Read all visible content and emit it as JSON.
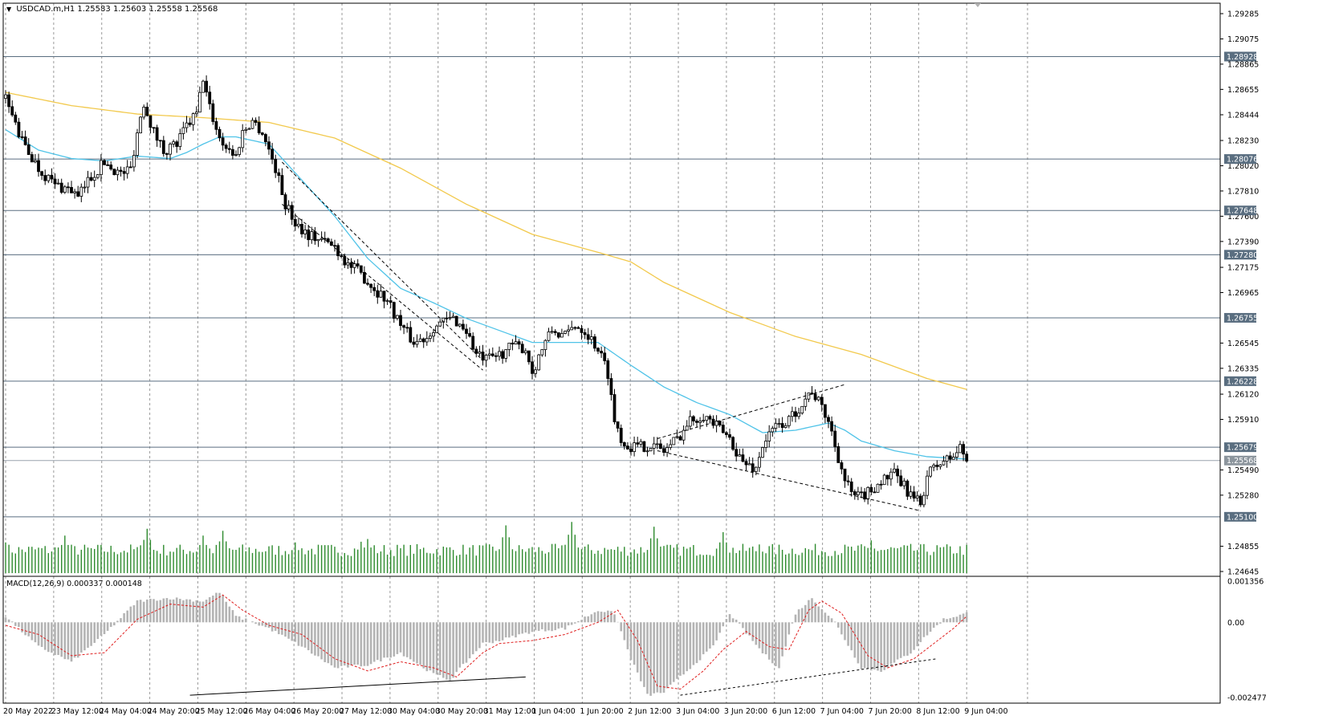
{
  "header": {
    "symbol": "USDCAD.m,H1",
    "ohlc": "1.25583 1.25603 1.25558 1.25568"
  },
  "macd": {
    "label": "MACD(12,26,9) 0.000337 0.000148",
    "axis_labels": [
      "0.001356",
      "0.00",
      "-0.002477"
    ]
  },
  "colors": {
    "ma_fast": "#4fc3e8",
    "ma_slow": "#f2c94c",
    "volume": "#2e8b2e",
    "hline": "#5a6e80",
    "macd_hist": "#b4b4b4",
    "macd_signal": "#e02020",
    "candle": "#000000"
  },
  "chart_data": {
    "type": "candlestick",
    "y_ticks": [
      "1.29285",
      "1.29075",
      "1.28865",
      "1.28655",
      "1.28444",
      "1.28230",
      "1.28020",
      "1.27810",
      "1.27600",
      "1.27390",
      "1.27175",
      "1.26965",
      "1.26545",
      "1.26335",
      "1.26120",
      "1.25910",
      "1.25490",
      "1.25280",
      "1.24855",
      "1.24645"
    ],
    "ylim": [
      1.24645,
      1.29285
    ],
    "hlines": [
      "1.28928",
      "1.28076",
      "1.27648",
      "1.27280",
      "1.26755",
      "1.26228",
      "1.25679",
      "1.25568",
      "1.25100"
    ],
    "current_price": "1.25568",
    "x_labels": [
      "20 May 2022",
      "23 May 12:00",
      "24 May 04:00",
      "24 May 20:00",
      "25 May 12:00",
      "26 May 04:00",
      "26 May 20:00",
      "27 May 12:00",
      "30 May 04:00",
      "30 May 20:00",
      "31 May 12:00",
      "1 Jun 04:00",
      "1 Jun 20:00",
      "2 Jun 12:00",
      "3 Jun 04:00",
      "3 Jun 20:00",
      "6 Jun 12:00",
      "7 Jun 04:00",
      "7 Jun 20:00",
      "8 Jun 12:00",
      "9 Jun 04:00"
    ],
    "close_path": [
      [
        0,
        1.2858
      ],
      [
        5,
        1.2822
      ],
      [
        10,
        1.28
      ],
      [
        15,
        1.2786
      ],
      [
        20,
        1.2782
      ],
      [
        22,
        1.2775
      ],
      [
        25,
        1.279
      ],
      [
        30,
        1.2805
      ],
      [
        35,
        1.2795
      ],
      [
        38,
        1.28
      ],
      [
        40,
        1.283
      ],
      [
        42,
        1.2855
      ],
      [
        45,
        1.283
      ],
      [
        48,
        1.2815
      ],
      [
        52,
        1.282
      ],
      [
        55,
        1.2835
      ],
      [
        58,
        1.2845
      ],
      [
        60,
        1.2875
      ],
      [
        62,
        1.285
      ],
      [
        65,
        1.2825
      ],
      [
        68,
        1.2815
      ],
      [
        70,
        1.281
      ],
      [
        72,
        1.283
      ],
      [
        75,
        1.284
      ],
      [
        78,
        1.283
      ],
      [
        80,
        1.2815
      ],
      [
        82,
        1.28
      ],
      [
        85,
        1.277
      ],
      [
        88,
        1.2755
      ],
      [
        92,
        1.2745
      ],
      [
        96,
        1.274
      ],
      [
        100,
        1.2735
      ],
      [
        104,
        1.272
      ],
      [
        108,
        1.2712
      ],
      [
        112,
        1.27
      ],
      [
        116,
        1.269
      ],
      [
        120,
        1.267
      ],
      [
        124,
        1.2655
      ],
      [
        128,
        1.266
      ],
      [
        130,
        1.2668
      ],
      [
        133,
        1.2672
      ],
      [
        136,
        1.2675
      ],
      [
        140,
        1.2665
      ],
      [
        143,
        1.2645
      ],
      [
        146,
        1.264
      ],
      [
        150,
        1.2645
      ],
      [
        154,
        1.2652
      ],
      [
        158,
        1.265
      ],
      [
        160,
        1.263
      ],
      [
        163,
        1.265
      ],
      [
        166,
        1.2665
      ],
      [
        170,
        1.266
      ],
      [
        173,
        1.267
      ],
      [
        176,
        1.2665
      ],
      [
        180,
        1.265
      ],
      [
        183,
        1.263
      ],
      [
        185,
        1.259
      ],
      [
        188,
        1.257
      ],
      [
        192,
        1.2568
      ],
      [
        196,
        1.257
      ],
      [
        200,
        1.2565
      ],
      [
        204,
        1.2575
      ],
      [
        208,
        1.259
      ],
      [
        212,
        1.2595
      ],
      [
        216,
        1.2585
      ],
      [
        220,
        1.2575
      ],
      [
        224,
        1.2555
      ],
      [
        228,
        1.255
      ],
      [
        230,
        1.257
      ],
      [
        234,
        1.2585
      ],
      [
        238,
        1.259
      ],
      [
        242,
        1.2605
      ],
      [
        245,
        1.2615
      ],
      [
        248,
        1.26
      ],
      [
        250,
        1.259
      ],
      [
        252,
        1.257
      ],
      [
        255,
        1.254
      ],
      [
        258,
        1.2525
      ],
      [
        262,
        1.253
      ],
      [
        266,
        1.254
      ],
      [
        270,
        1.2545
      ],
      [
        273,
        1.2535
      ],
      [
        276,
        1.2525
      ],
      [
        278,
        1.252
      ],
      [
        280,
        1.2545
      ],
      [
        284,
        1.2555
      ],
      [
        288,
        1.256
      ],
      [
        290,
        1.2568
      ],
      [
        292,
        1.2557
      ]
    ],
    "ma_fast_path": [
      [
        0,
        1.2832
      ],
      [
        10,
        1.2815
      ],
      [
        20,
        1.2808
      ],
      [
        30,
        1.2806
      ],
      [
        40,
        1.281
      ],
      [
        50,
        1.2808
      ],
      [
        55,
        1.2813
      ],
      [
        60,
        1.282
      ],
      [
        65,
        1.2826
      ],
      [
        70,
        1.2826
      ],
      [
        80,
        1.282
      ],
      [
        90,
        1.279
      ],
      [
        100,
        1.276
      ],
      [
        110,
        1.2725
      ],
      [
        120,
        1.27
      ],
      [
        130,
        1.2688
      ],
      [
        140,
        1.2675
      ],
      [
        150,
        1.2665
      ],
      [
        160,
        1.2655
      ],
      [
        170,
        1.2655
      ],
      [
        180,
        1.2655
      ],
      [
        190,
        1.2636
      ],
      [
        200,
        1.2618
      ],
      [
        210,
        1.2605
      ],
      [
        220,
        1.2595
      ],
      [
        230,
        1.258
      ],
      [
        240,
        1.2582
      ],
      [
        250,
        1.2588
      ],
      [
        255,
        1.2582
      ],
      [
        260,
        1.2573
      ],
      [
        270,
        1.2565
      ],
      [
        280,
        1.256
      ],
      [
        292,
        1.2558
      ]
    ],
    "ma_slow_path": [
      [
        0,
        1.2863
      ],
      [
        20,
        1.2852
      ],
      [
        40,
        1.2845
      ],
      [
        60,
        1.2842
      ],
      [
        80,
        1.2838
      ],
      [
        100,
        1.2825
      ],
      [
        120,
        1.28
      ],
      [
        140,
        1.277
      ],
      [
        160,
        1.2745
      ],
      [
        180,
        1.273
      ],
      [
        190,
        1.2722
      ],
      [
        200,
        1.2705
      ],
      [
        220,
        1.268
      ],
      [
        240,
        1.266
      ],
      [
        260,
        1.2645
      ],
      [
        280,
        1.2625
      ],
      [
        292,
        1.2616
      ]
    ],
    "macd_hist_path": [
      [
        0,
        0.0002
      ],
      [
        10,
        -0.0008
      ],
      [
        20,
        -0.0013
      ],
      [
        30,
        -0.0004
      ],
      [
        40,
        0.0007
      ],
      [
        50,
        0.0008
      ],
      [
        60,
        0.0007
      ],
      [
        65,
        0.001
      ],
      [
        70,
        0.0002
      ],
      [
        80,
        -0.0002
      ],
      [
        90,
        -0.0008
      ],
      [
        100,
        -0.0015
      ],
      [
        110,
        -0.0014
      ],
      [
        120,
        -0.001
      ],
      [
        130,
        -0.0017
      ],
      [
        135,
        -0.0019
      ],
      [
        145,
        -0.0007
      ],
      [
        150,
        -0.0006
      ],
      [
        160,
        -0.0003
      ],
      [
        170,
        -0.0002
      ],
      [
        180,
        0.0004
      ],
      [
        185,
        0.0003
      ],
      [
        190,
        -0.0012
      ],
      [
        195,
        -0.0024
      ],
      [
        200,
        -0.0023
      ],
      [
        210,
        -0.0013
      ],
      [
        215,
        -0.0008
      ],
      [
        220,
        0.0003
      ],
      [
        230,
        -0.001
      ],
      [
        235,
        -0.0015
      ],
      [
        240,
        0.0003
      ],
      [
        245,
        0.0008
      ],
      [
        252,
        0.0
      ],
      [
        260,
        -0.0015
      ],
      [
        266,
        -0.0016
      ],
      [
        275,
        -0.001
      ],
      [
        280,
        -0.0004
      ],
      [
        285,
        0.0001
      ],
      [
        292,
        0.0003
      ]
    ],
    "macd_signal_path": [
      [
        0,
        -0.0001
      ],
      [
        10,
        -0.0004
      ],
      [
        20,
        -0.0011
      ],
      [
        30,
        -0.001
      ],
      [
        40,
        0.0001
      ],
      [
        50,
        0.0006
      ],
      [
        60,
        0.0005
      ],
      [
        66,
        0.0009
      ],
      [
        72,
        0.0004
      ],
      [
        80,
        -0.0001
      ],
      [
        90,
        -0.0004
      ],
      [
        100,
        -0.0012
      ],
      [
        110,
        -0.0016
      ],
      [
        120,
        -0.0013
      ],
      [
        130,
        -0.0015
      ],
      [
        137,
        -0.0018
      ],
      [
        145,
        -0.001
      ],
      [
        150,
        -0.0007
      ],
      [
        160,
        -0.0006
      ],
      [
        170,
        -0.0004
      ],
      [
        180,
        0.0
      ],
      [
        186,
        0.0004
      ],
      [
        192,
        -0.0006
      ],
      [
        198,
        -0.0021
      ],
      [
        205,
        -0.0022
      ],
      [
        212,
        -0.0016
      ],
      [
        218,
        -0.0009
      ],
      [
        225,
        -0.0003
      ],
      [
        232,
        -0.0008
      ],
      [
        238,
        -0.0009
      ],
      [
        244,
        0.0004
      ],
      [
        248,
        0.0007
      ],
      [
        254,
        0.0003
      ],
      [
        262,
        -0.0011
      ],
      [
        268,
        -0.0015
      ],
      [
        276,
        -0.0012
      ],
      [
        282,
        -0.0007
      ],
      [
        288,
        -0.0002
      ],
      [
        292,
        0.0002
      ]
    ],
    "volume_peaks": [
      [
        0,
        0.45
      ],
      [
        18,
        0.55
      ],
      [
        43,
        0.65
      ],
      [
        60,
        0.55
      ],
      [
        66,
        0.62
      ],
      [
        88,
        0.45
      ],
      [
        108,
        0.46
      ],
      [
        110,
        0.5
      ],
      [
        152,
        0.7
      ],
      [
        172,
        0.75
      ],
      [
        197,
        0.68
      ],
      [
        218,
        0.6
      ],
      [
        229,
        0.42
      ],
      [
        263,
        0.48
      ],
      [
        282,
        0.3
      ]
    ],
    "volume_base": 0.25,
    "trendlines": [
      {
        "style": "dashed",
        "from": [
          84,
          1.2805
        ],
        "to": [
          145,
          1.264
        ]
      },
      {
        "style": "dashed",
        "from": [
          84,
          1.277
        ],
        "to": [
          145,
          1.2632
        ]
      },
      {
        "style": "dashed",
        "from": [
          198,
          1.2575
        ],
        "to": [
          255,
          1.262
        ]
      },
      {
        "style": "dashed",
        "from": [
          198,
          1.2565
        ],
        "to": [
          278,
          1.2515
        ]
      }
    ],
    "macd_trendlines": [
      {
        "style": "solid",
        "from": [
          56,
          -0.0024
        ],
        "to": [
          158,
          -0.0018
        ]
      },
      {
        "style": "dashed",
        "from": [
          205,
          -0.0024
        ],
        "to": [
          283,
          -0.0012
        ]
      }
    ],
    "bars_total": 293
  }
}
